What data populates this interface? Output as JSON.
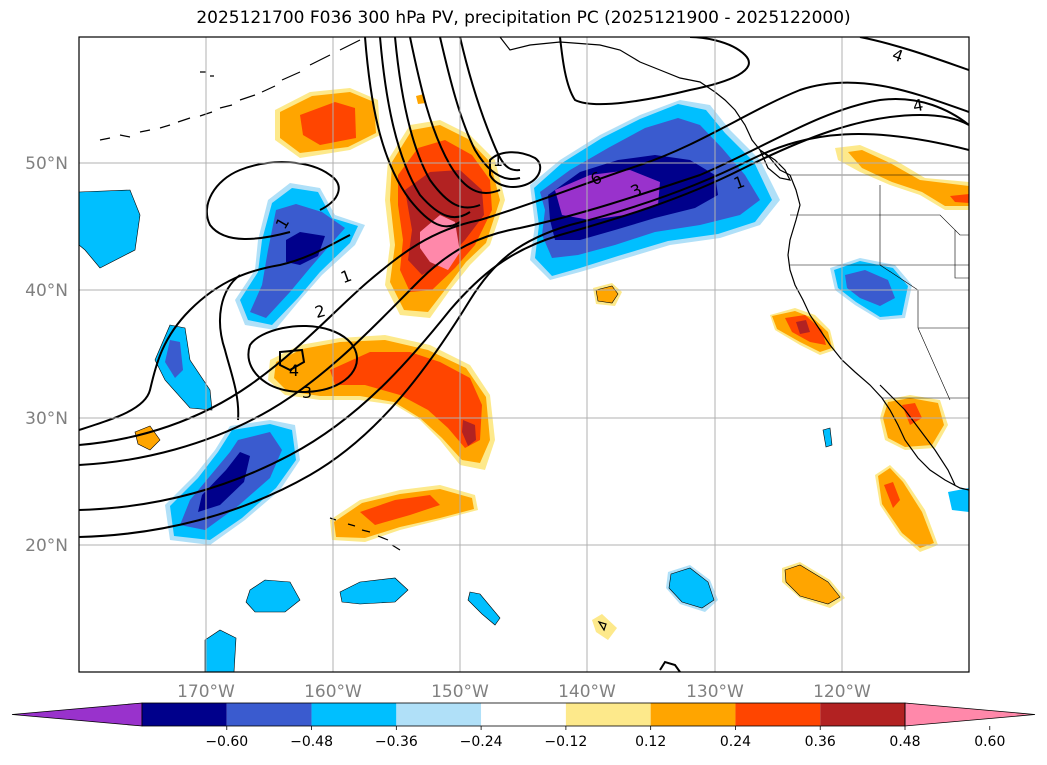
{
  "title": "2025121700 F036 300 hPa PV, precipitation PC (2025121900 - 2025122000)",
  "lat_labels": [
    "50°N",
    "40°N",
    "30°N",
    "20°N"
  ],
  "lon_labels": [
    "170°W",
    "160°W",
    "150°W",
    "140°W",
    "130°W",
    "120°W"
  ],
  "colorbar": {
    "colors": [
      "#9932cc",
      "#00008b",
      "#3a5bcf",
      "#00bfff",
      "#b0e0f8",
      "#ffffff",
      "#fde98b",
      "#ffa500",
      "#ff4500",
      "#b22222",
      "#ff88aa"
    ],
    "tick_labels": [
      "−0.60",
      "−0.48",
      "−0.36",
      "−0.24",
      "−0.12",
      "0.12",
      "0.24",
      "0.36",
      "0.48",
      "0.60"
    ]
  },
  "contour_labels": [
    "4",
    "4",
    "1",
    "6",
    "3",
    "1",
    "1",
    "1",
    "2",
    "4",
    "3"
  ],
  "colors": {
    "grid": "#b0b0b0",
    "contour": "#000000",
    "coast": "#000000",
    "axis_label": "#808080"
  }
}
